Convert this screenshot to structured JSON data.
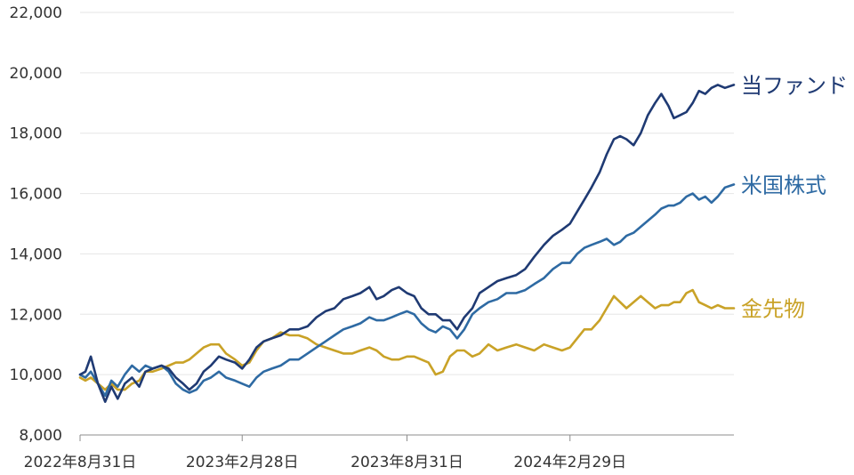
{
  "chart_data": {
    "type": "line",
    "title": "",
    "xlabel": "",
    "ylabel": "",
    "ylim": [
      8000,
      22000
    ],
    "yticks": [
      8000,
      10000,
      12000,
      14000,
      16000,
      18000,
      20000,
      22000
    ],
    "ytick_labels": [
      "8,000",
      "10,000",
      "12,000",
      "14,000",
      "16,000",
      "18,000",
      "20,000",
      "22,000"
    ],
    "xlim": [
      "2022-08-31",
      "2024-08-30"
    ],
    "xticks": [
      "2022-08-31",
      "2023-02-28",
      "2023-08-31",
      "2024-02-29"
    ],
    "xtick_labels": [
      "2022年8月31日",
      "2023年2月28日",
      "2023年8月31日",
      "2024年2月29日"
    ],
    "grid": true,
    "legend": "labels at right end of each line",
    "series": [
      {
        "name": "当ファンド",
        "color": "#1f3a73",
        "points": [
          [
            "2022-08-31",
            10000
          ],
          [
            "2022-09-06",
            10100
          ],
          [
            "2022-09-12",
            10600
          ],
          [
            "2022-09-20",
            9700
          ],
          [
            "2022-09-28",
            9100
          ],
          [
            "2022-10-05",
            9600
          ],
          [
            "2022-10-12",
            9200
          ],
          [
            "2022-10-20",
            9700
          ],
          [
            "2022-10-28",
            9900
          ],
          [
            "2022-11-05",
            9600
          ],
          [
            "2022-11-12",
            10100
          ],
          [
            "2022-11-20",
            10200
          ],
          [
            "2022-11-30",
            10300
          ],
          [
            "2022-12-08",
            10200
          ],
          [
            "2022-12-16",
            9900
          ],
          [
            "2022-12-24",
            9700
          ],
          [
            "2022-12-31",
            9500
          ],
          [
            "2023-01-08",
            9700
          ],
          [
            "2023-01-16",
            10100
          ],
          [
            "2023-01-24",
            10300
          ],
          [
            "2023-02-02",
            10600
          ],
          [
            "2023-02-10",
            10500
          ],
          [
            "2023-02-20",
            10400
          ],
          [
            "2023-02-28",
            10200
          ],
          [
            "2023-03-08",
            10500
          ],
          [
            "2023-03-16",
            10900
          ],
          [
            "2023-03-24",
            11100
          ],
          [
            "2023-04-02",
            11200
          ],
          [
            "2023-04-12",
            11300
          ],
          [
            "2023-04-22",
            11500
          ],
          [
            "2023-05-02",
            11500
          ],
          [
            "2023-05-12",
            11600
          ],
          [
            "2023-05-22",
            11900
          ],
          [
            "2023-06-01",
            12100
          ],
          [
            "2023-06-11",
            12200
          ],
          [
            "2023-06-21",
            12500
          ],
          [
            "2023-07-01",
            12600
          ],
          [
            "2023-07-10",
            12700
          ],
          [
            "2023-07-20",
            12900
          ],
          [
            "2023-07-28",
            12500
          ],
          [
            "2023-08-05",
            12600
          ],
          [
            "2023-08-14",
            12800
          ],
          [
            "2023-08-22",
            12900
          ],
          [
            "2023-08-31",
            12700
          ],
          [
            "2023-09-08",
            12600
          ],
          [
            "2023-09-16",
            12200
          ],
          [
            "2023-09-24",
            12000
          ],
          [
            "2023-10-02",
            12000
          ],
          [
            "2023-10-10",
            11800
          ],
          [
            "2023-10-18",
            11800
          ],
          [
            "2023-10-26",
            11500
          ],
          [
            "2023-11-03",
            11900
          ],
          [
            "2023-11-12",
            12200
          ],
          [
            "2023-11-20",
            12700
          ],
          [
            "2023-11-30",
            12900
          ],
          [
            "2023-12-10",
            13100
          ],
          [
            "2023-12-20",
            13200
          ],
          [
            "2023-12-31",
            13300
          ],
          [
            "2024-01-10",
            13500
          ],
          [
            "2024-01-20",
            13900
          ],
          [
            "2024-01-31",
            14300
          ],
          [
            "2024-02-10",
            14600
          ],
          [
            "2024-02-20",
            14800
          ],
          [
            "2024-02-29",
            15000
          ],
          [
            "2024-03-08",
            15400
          ],
          [
            "2024-03-16",
            15800
          ],
          [
            "2024-03-24",
            16200
          ],
          [
            "2024-04-02",
            16700
          ],
          [
            "2024-04-10",
            17300
          ],
          [
            "2024-04-18",
            17800
          ],
          [
            "2024-04-25",
            17900
          ],
          [
            "2024-05-02",
            17800
          ],
          [
            "2024-05-10",
            17600
          ],
          [
            "2024-05-18",
            18000
          ],
          [
            "2024-05-26",
            18600
          ],
          [
            "2024-06-03",
            19000
          ],
          [
            "2024-06-10",
            19300
          ],
          [
            "2024-06-18",
            18900
          ],
          [
            "2024-06-24",
            18500
          ],
          [
            "2024-07-01",
            18600
          ],
          [
            "2024-07-08",
            18700
          ],
          [
            "2024-07-15",
            19000
          ],
          [
            "2024-07-22",
            19400
          ],
          [
            "2024-07-29",
            19300
          ],
          [
            "2024-08-05",
            19500
          ],
          [
            "2024-08-12",
            19600
          ],
          [
            "2024-08-20",
            19500
          ],
          [
            "2024-08-30",
            19600
          ]
        ]
      },
      {
        "name": "米国株式",
        "color": "#2e6aa3",
        "points": [
          [
            "2022-08-31",
            10000
          ],
          [
            "2022-09-06",
            9900
          ],
          [
            "2022-09-12",
            10100
          ],
          [
            "2022-09-20",
            9700
          ],
          [
            "2022-09-28",
            9300
          ],
          [
            "2022-10-05",
            9800
          ],
          [
            "2022-10-12",
            9600
          ],
          [
            "2022-10-20",
            10000
          ],
          [
            "2022-10-28",
            10300
          ],
          [
            "2022-11-05",
            10100
          ],
          [
            "2022-11-12",
            10300
          ],
          [
            "2022-11-20",
            10200
          ],
          [
            "2022-11-30",
            10300
          ],
          [
            "2022-12-08",
            10100
          ],
          [
            "2022-12-16",
            9700
          ],
          [
            "2022-12-24",
            9500
          ],
          [
            "2022-12-31",
            9400
          ],
          [
            "2023-01-08",
            9500
          ],
          [
            "2023-01-16",
            9800
          ],
          [
            "2023-01-24",
            9900
          ],
          [
            "2023-02-02",
            10100
          ],
          [
            "2023-02-10",
            9900
          ],
          [
            "2023-02-20",
            9800
          ],
          [
            "2023-02-28",
            9700
          ],
          [
            "2023-03-08",
            9600
          ],
          [
            "2023-03-16",
            9900
          ],
          [
            "2023-03-24",
            10100
          ],
          [
            "2023-04-02",
            10200
          ],
          [
            "2023-04-12",
            10300
          ],
          [
            "2023-04-22",
            10500
          ],
          [
            "2023-05-02",
            10500
          ],
          [
            "2023-05-12",
            10700
          ],
          [
            "2023-05-22",
            10900
          ],
          [
            "2023-06-01",
            11100
          ],
          [
            "2023-06-11",
            11300
          ],
          [
            "2023-06-21",
            11500
          ],
          [
            "2023-07-01",
            11600
          ],
          [
            "2023-07-10",
            11700
          ],
          [
            "2023-07-20",
            11900
          ],
          [
            "2023-07-28",
            11800
          ],
          [
            "2023-08-05",
            11800
          ],
          [
            "2023-08-14",
            11900
          ],
          [
            "2023-08-22",
            12000
          ],
          [
            "2023-08-31",
            12100
          ],
          [
            "2023-09-08",
            12000
          ],
          [
            "2023-09-16",
            11700
          ],
          [
            "2023-09-24",
            11500
          ],
          [
            "2023-10-02",
            11400
          ],
          [
            "2023-10-10",
            11600
          ],
          [
            "2023-10-18",
            11500
          ],
          [
            "2023-10-26",
            11200
          ],
          [
            "2023-11-03",
            11500
          ],
          [
            "2023-11-12",
            12000
          ],
          [
            "2023-11-20",
            12200
          ],
          [
            "2023-11-30",
            12400
          ],
          [
            "2023-12-10",
            12500
          ],
          [
            "2023-12-20",
            12700
          ],
          [
            "2023-12-31",
            12700
          ],
          [
            "2024-01-10",
            12800
          ],
          [
            "2024-01-20",
            13000
          ],
          [
            "2024-01-31",
            13200
          ],
          [
            "2024-02-10",
            13500
          ],
          [
            "2024-02-20",
            13700
          ],
          [
            "2024-02-29",
            13700
          ],
          [
            "2024-03-08",
            14000
          ],
          [
            "2024-03-16",
            14200
          ],
          [
            "2024-03-24",
            14300
          ],
          [
            "2024-04-02",
            14400
          ],
          [
            "2024-04-10",
            14500
          ],
          [
            "2024-04-18",
            14300
          ],
          [
            "2024-04-25",
            14400
          ],
          [
            "2024-05-02",
            14600
          ],
          [
            "2024-05-10",
            14700
          ],
          [
            "2024-05-18",
            14900
          ],
          [
            "2024-05-26",
            15100
          ],
          [
            "2024-06-03",
            15300
          ],
          [
            "2024-06-10",
            15500
          ],
          [
            "2024-06-18",
            15600
          ],
          [
            "2024-06-24",
            15600
          ],
          [
            "2024-07-01",
            15700
          ],
          [
            "2024-07-08",
            15900
          ],
          [
            "2024-07-15",
            16000
          ],
          [
            "2024-07-22",
            15800
          ],
          [
            "2024-07-29",
            15900
          ],
          [
            "2024-08-05",
            15700
          ],
          [
            "2024-08-12",
            15900
          ],
          [
            "2024-08-20",
            16200
          ],
          [
            "2024-08-30",
            16300
          ]
        ]
      },
      {
        "name": "金先物",
        "color": "#c9a227",
        "points": [
          [
            "2022-08-31",
            9900
          ],
          [
            "2022-09-06",
            9800
          ],
          [
            "2022-09-12",
            9900
          ],
          [
            "2022-09-20",
            9700
          ],
          [
            "2022-09-28",
            9500
          ],
          [
            "2022-10-05",
            9700
          ],
          [
            "2022-10-12",
            9500
          ],
          [
            "2022-10-20",
            9500
          ],
          [
            "2022-10-28",
            9700
          ],
          [
            "2022-11-05",
            9800
          ],
          [
            "2022-11-12",
            10100
          ],
          [
            "2022-11-20",
            10100
          ],
          [
            "2022-11-30",
            10200
          ],
          [
            "2022-12-08",
            10300
          ],
          [
            "2022-12-16",
            10400
          ],
          [
            "2022-12-24",
            10400
          ],
          [
            "2022-12-31",
            10500
          ],
          [
            "2023-01-08",
            10700
          ],
          [
            "2023-01-16",
            10900
          ],
          [
            "2023-01-24",
            11000
          ],
          [
            "2023-02-02",
            11000
          ],
          [
            "2023-02-10",
            10700
          ],
          [
            "2023-02-20",
            10500
          ],
          [
            "2023-02-28",
            10300
          ],
          [
            "2023-03-08",
            10400
          ],
          [
            "2023-03-16",
            10800
          ],
          [
            "2023-03-24",
            11100
          ],
          [
            "2023-04-02",
            11200
          ],
          [
            "2023-04-12",
            11400
          ],
          [
            "2023-04-22",
            11300
          ],
          [
            "2023-05-02",
            11300
          ],
          [
            "2023-05-12",
            11200
          ],
          [
            "2023-05-22",
            11000
          ],
          [
            "2023-06-01",
            10900
          ],
          [
            "2023-06-11",
            10800
          ],
          [
            "2023-06-21",
            10700
          ],
          [
            "2023-07-01",
            10700
          ],
          [
            "2023-07-10",
            10800
          ],
          [
            "2023-07-20",
            10900
          ],
          [
            "2023-07-28",
            10800
          ],
          [
            "2023-08-05",
            10600
          ],
          [
            "2023-08-14",
            10500
          ],
          [
            "2023-08-22",
            10500
          ],
          [
            "2023-08-31",
            10600
          ],
          [
            "2023-09-08",
            10600
          ],
          [
            "2023-09-16",
            10500
          ],
          [
            "2023-09-24",
            10400
          ],
          [
            "2023-10-02",
            10000
          ],
          [
            "2023-10-10",
            10100
          ],
          [
            "2023-10-18",
            10600
          ],
          [
            "2023-10-26",
            10800
          ],
          [
            "2023-11-03",
            10800
          ],
          [
            "2023-11-12",
            10600
          ],
          [
            "2023-11-20",
            10700
          ],
          [
            "2023-11-30",
            11000
          ],
          [
            "2023-12-10",
            10800
          ],
          [
            "2023-12-20",
            10900
          ],
          [
            "2023-12-31",
            11000
          ],
          [
            "2024-01-10",
            10900
          ],
          [
            "2024-01-20",
            10800
          ],
          [
            "2024-01-31",
            11000
          ],
          [
            "2024-02-10",
            10900
          ],
          [
            "2024-02-20",
            10800
          ],
          [
            "2024-02-29",
            10900
          ],
          [
            "2024-03-08",
            11200
          ],
          [
            "2024-03-16",
            11500
          ],
          [
            "2024-03-24",
            11500
          ],
          [
            "2024-04-02",
            11800
          ],
          [
            "2024-04-10",
            12200
          ],
          [
            "2024-04-18",
            12600
          ],
          [
            "2024-04-25",
            12400
          ],
          [
            "2024-05-02",
            12200
          ],
          [
            "2024-05-10",
            12400
          ],
          [
            "2024-05-18",
            12600
          ],
          [
            "2024-05-26",
            12400
          ],
          [
            "2024-06-03",
            12200
          ],
          [
            "2024-06-10",
            12300
          ],
          [
            "2024-06-18",
            12300
          ],
          [
            "2024-06-24",
            12400
          ],
          [
            "2024-07-01",
            12400
          ],
          [
            "2024-07-08",
            12700
          ],
          [
            "2024-07-15",
            12800
          ],
          [
            "2024-07-22",
            12400
          ],
          [
            "2024-07-29",
            12300
          ],
          [
            "2024-08-05",
            12200
          ],
          [
            "2024-08-12",
            12300
          ],
          [
            "2024-08-20",
            12200
          ],
          [
            "2024-08-30",
            12200
          ]
        ]
      }
    ]
  }
}
